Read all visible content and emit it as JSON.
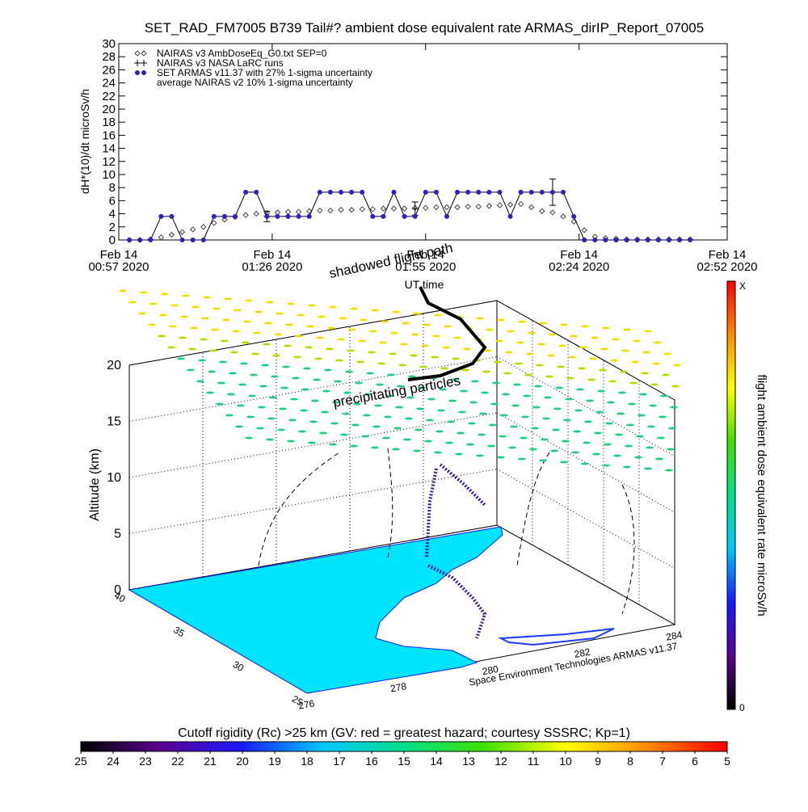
{
  "chart_data": [
    {
      "type": "line",
      "title": "SET_RAD_FM7005  B739 Tail#? ambient dose equivalent rate ARMAS_dirIP_Report_07005",
      "y_label": "dH*(10)/dt microSv/h",
      "x_label": "UT time",
      "x": [
        "00:59",
        "01:01",
        "01:03",
        "01:05",
        "01:07",
        "01:09",
        "01:11",
        "01:13",
        "01:15",
        "01:17",
        "01:19",
        "01:21",
        "01:23",
        "01:25",
        "01:27",
        "01:29",
        "01:31",
        "01:33",
        "01:35",
        "01:37",
        "01:39",
        "01:41",
        "01:43",
        "01:45",
        "01:47",
        "01:49",
        "01:51",
        "01:53",
        "01:55",
        "01:57",
        "01:59",
        "02:01",
        "02:03",
        "02:05",
        "02:07",
        "02:09",
        "02:11",
        "02:13",
        "02:15",
        "02:17",
        "02:19",
        "02:21",
        "02:23",
        "02:25",
        "02:27",
        "02:29",
        "02:31",
        "02:33",
        "02:35",
        "02:37",
        "02:39",
        "02:41",
        "02:43",
        "02:45"
      ],
      "xlim": [
        "00:57",
        "02:52"
      ],
      "xticks": [
        {
          "value": "00:57",
          "label": [
            "Feb 14",
            "00:57 2020"
          ]
        },
        {
          "value": "01:26",
          "label": [
            "Feb 14",
            "01:26 2020"
          ]
        },
        {
          "value": "01:55",
          "label": [
            "Feb 14",
            "01:55 2020"
          ]
        },
        {
          "value": "02:24",
          "label": [
            "Feb 14",
            "02:24 2020"
          ]
        },
        {
          "value": "02:52",
          "label": [
            "Feb 14",
            "02:52 2020"
          ]
        }
      ],
      "ylim": [
        0,
        30
      ],
      "yticks": [
        0,
        2,
        4,
        6,
        8,
        10,
        12,
        14,
        16,
        18,
        20,
        22,
        24,
        26,
        28,
        30
      ],
      "series": [
        {
          "name": "NAIRAS v3 AmbDoseEq_G0.txt SEP=0",
          "marker": "diamond",
          "color": "#444444",
          "values": [
            0,
            0,
            0.1,
            0.4,
            0.8,
            1.2,
            1.6,
            2.0,
            2.6,
            3.1,
            3.5,
            3.8,
            4.0,
            4.1,
            4.2,
            4.3,
            4.3,
            4.4,
            4.5,
            4.5,
            4.6,
            4.6,
            4.7,
            4.7,
            4.8,
            4.8,
            4.8,
            4.9,
            4.9,
            5.0,
            5.0,
            5.0,
            5.1,
            5.1,
            5.2,
            5.3,
            5.4,
            5.5,
            5.0,
            4.4,
            4.2,
            3.6,
            2.8,
            1.5,
            0.5,
            0.3,
            0.2,
            0.1,
            0.1,
            0.1,
            0.1,
            0.1,
            0.1,
            0.1
          ]
        },
        {
          "name": "NAIRAS v3 NASA LaRC runs",
          "marker": "errorbar",
          "color": "#000000",
          "values": [
            null,
            null,
            null,
            null,
            null,
            null,
            null,
            null,
            null,
            null,
            null,
            null,
            null,
            3.6,
            null,
            null,
            null,
            null,
            null,
            null,
            null,
            null,
            null,
            null,
            null,
            null,
            null,
            4.8,
            null,
            null,
            null,
            null,
            null,
            null,
            null,
            null,
            null,
            null,
            null,
            null,
            7.3,
            null,
            null,
            null,
            null,
            null,
            null,
            null,
            null,
            null,
            null,
            null,
            null,
            null
          ],
          "errors": [
            null,
            null,
            null,
            null,
            null,
            null,
            null,
            null,
            null,
            null,
            null,
            null,
            null,
            0.8,
            null,
            null,
            null,
            null,
            null,
            null,
            null,
            null,
            null,
            null,
            null,
            null,
            null,
            1.0,
            null,
            null,
            null,
            null,
            null,
            null,
            null,
            null,
            null,
            null,
            null,
            null,
            2.0,
            null,
            null,
            null,
            null,
            null,
            null,
            null,
            null,
            null,
            null,
            null,
            null,
            null
          ]
        },
        {
          "name": "SET ARMAS v11.37 with 27% 1-sigma uncertainty",
          "marker": "dot",
          "color": "#2a1fc8",
          "line_color": "#000000",
          "values": [
            0,
            0,
            0,
            3.6,
            3.6,
            0,
            0,
            0,
            3.6,
            3.6,
            3.6,
            7.3,
            7.3,
            3.6,
            3.6,
            3.6,
            3.6,
            3.6,
            7.3,
            7.3,
            7.3,
            7.3,
            7.3,
            3.6,
            3.6,
            7.3,
            3.6,
            3.6,
            7.3,
            7.3,
            3.6,
            7.3,
            7.3,
            7.3,
            7.3,
            7.3,
            3.6,
            7.3,
            7.3,
            7.3,
            7.3,
            7.3,
            3.6,
            0,
            0,
            0,
            0,
            0,
            0,
            0,
            0,
            0,
            0,
            0
          ]
        }
      ],
      "legend_notes": [
        "average NAIRAS v2 10% 1-sigma uncertainty"
      ]
    },
    {
      "type": "colorbar",
      "orientation": "horizontal",
      "title": "Cutoff rigidity (Rc) >25 km (GV: red = greatest hazard; courtesy SSSRC; Kp=1)",
      "xlim": [
        25,
        5
      ],
      "xticks": [
        25,
        24,
        23,
        22,
        21,
        20,
        19,
        18,
        17,
        16,
        15,
        14,
        13,
        12,
        11,
        10,
        9,
        8,
        7,
        6,
        5
      ],
      "colors": [
        "#000000",
        "#5a0090",
        "#1a1aff",
        "#00c8ff",
        "#00e08a",
        "#40e000",
        "#ffff00",
        "#ff8c00",
        "#ff0000"
      ]
    },
    {
      "type": "colorbar",
      "orientation": "vertical",
      "label": "flight ambient dose equivalent rate microSv/h",
      "end_labels": [
        "0",
        "X"
      ],
      "colors": [
        "#000000",
        "#5a0090",
        "#1a1aff",
        "#00c8ff",
        "#00e08a",
        "#40e000",
        "#ffff00",
        "#ff8c00",
        "#ff0000"
      ]
    }
  ],
  "scene": {
    "annotations": [
      "shadowed flight path",
      "precipitating particles"
    ],
    "z_label": "Altitude (km)",
    "z_ticks": [
      "0",
      "5",
      "10",
      "15",
      "20"
    ],
    "lat_ticks": [
      "40",
      "35",
      "30",
      "25"
    ],
    "lon_ticks": [
      "276",
      "278",
      "280",
      "282",
      "284"
    ],
    "credit": "Space Environment Technologies ARMAS v11.37"
  }
}
